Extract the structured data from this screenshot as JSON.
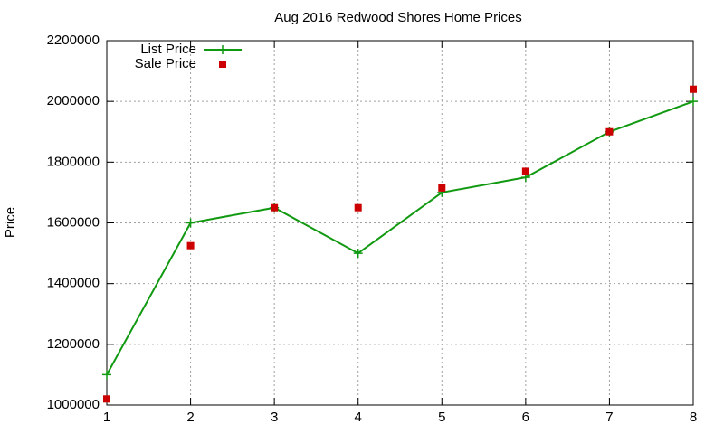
{
  "chart_data": {
    "type": "line",
    "title": "Aug 2016 Redwood Shores Home Prices",
    "y_label": "Price",
    "x": [
      1,
      2,
      3,
      4,
      5,
      6,
      7,
      8
    ],
    "series": [
      {
        "name": "List Price",
        "color": "#119911",
        "style": "linespoints",
        "values": [
          1100000,
          1600000,
          1650000,
          1500000,
          1700000,
          1750000,
          1900000,
          2000000
        ]
      },
      {
        "name": "Sale Price",
        "color": "#cc0000",
        "style": "points",
        "values": [
          1020000,
          1525000,
          1650000,
          1650000,
          1715000,
          1770000,
          1900000,
          2040000
        ]
      }
    ],
    "xlim": [
      1,
      8
    ],
    "xticks": [
      1,
      2,
      3,
      4,
      5,
      6,
      7,
      8
    ],
    "ylim": [
      1000000,
      2200000
    ],
    "yticks": [
      1000000,
      1200000,
      1400000,
      1600000,
      1800000,
      2000000,
      2200000
    ],
    "grid": true,
    "legend": "top-left"
  }
}
